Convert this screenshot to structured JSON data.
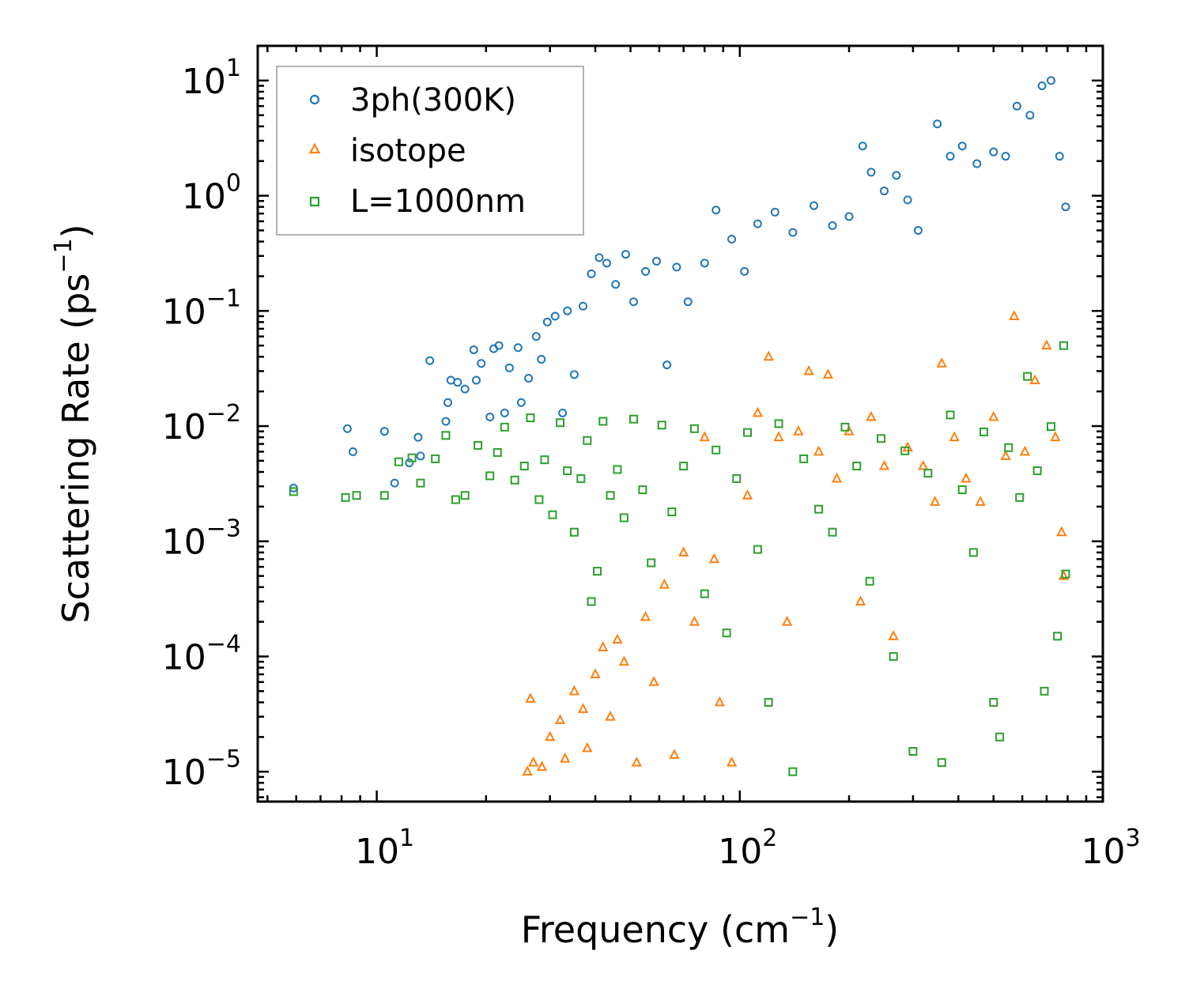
{
  "chart_data": {
    "type": "scatter",
    "title": "",
    "xlabel": "Frequency (cm",
    "xlabel_sup": "−1",
    "xlabel_end": ")",
    "ylabel": "Scattering Rate (ps",
    "ylabel_sup": "−1",
    "ylabel_end": ")",
    "xscale": "log",
    "yscale": "log",
    "xlim": [
      4.7,
      1000
    ],
    "ylim": [
      5.5e-06,
      20
    ],
    "x_ticks": [
      {
        "value": 10,
        "base": "10",
        "exp": "1"
      },
      {
        "value": 100,
        "base": "10",
        "exp": "2"
      },
      {
        "value": 1000,
        "base": "10",
        "exp": "3"
      }
    ],
    "y_ticks": [
      {
        "value": 1e-05,
        "base": "10",
        "exp": "−5"
      },
      {
        "value": 0.0001,
        "base": "10",
        "exp": "−4"
      },
      {
        "value": 0.001,
        "base": "10",
        "exp": "−3"
      },
      {
        "value": 0.01,
        "base": "10",
        "exp": "−2"
      },
      {
        "value": 0.1,
        "base": "10",
        "exp": "−1"
      },
      {
        "value": 1,
        "base": "10",
        "exp": "0"
      },
      {
        "value": 10,
        "base": "10",
        "exp": "1"
      }
    ],
    "legend_position": "top-left",
    "series": [
      {
        "name": "3ph(300K)",
        "marker": "circle",
        "color": "#1f77b4",
        "points": [
          [
            5.9,
            0.0029
          ],
          [
            8.3,
            0.0095
          ],
          [
            8.6,
            0.006
          ],
          [
            10.5,
            0.009
          ],
          [
            11.2,
            0.0032
          ],
          [
            12.3,
            0.0048
          ],
          [
            13.0,
            0.008
          ],
          [
            13.2,
            0.0055
          ],
          [
            14.0,
            0.037
          ],
          [
            15.5,
            0.011
          ],
          [
            15.7,
            0.016
          ],
          [
            16.0,
            0.025
          ],
          [
            16.7,
            0.024
          ],
          [
            17.5,
            0.021
          ],
          [
            18.5,
            0.046
          ],
          [
            18.8,
            0.025
          ],
          [
            19.4,
            0.035
          ],
          [
            20.5,
            0.012
          ],
          [
            21.0,
            0.047
          ],
          [
            21.7,
            0.05
          ],
          [
            22.5,
            0.013
          ],
          [
            23.2,
            0.032
          ],
          [
            24.5,
            0.048
          ],
          [
            25.0,
            0.016
          ],
          [
            26.2,
            0.026
          ],
          [
            27.5,
            0.06
          ],
          [
            28.4,
            0.038
          ],
          [
            29.5,
            0.08
          ],
          [
            31.0,
            0.09
          ],
          [
            32.5,
            0.013
          ],
          [
            33.5,
            0.1
          ],
          [
            35.0,
            0.028
          ],
          [
            37.0,
            0.11
          ],
          [
            39.0,
            0.21
          ],
          [
            41.0,
            0.29
          ],
          [
            43.0,
            0.26
          ],
          [
            45.5,
            0.17
          ],
          [
            48.5,
            0.31
          ],
          [
            51.0,
            0.12
          ],
          [
            55.0,
            0.22
          ],
          [
            59.0,
            0.27
          ],
          [
            63.0,
            0.034
          ],
          [
            67.0,
            0.24
          ],
          [
            72.0,
            0.12
          ],
          [
            80.0,
            0.26
          ],
          [
            86.0,
            0.75
          ],
          [
            95.0,
            0.42
          ],
          [
            103.0,
            0.22
          ],
          [
            112.0,
            0.57
          ],
          [
            125.0,
            0.72
          ],
          [
            140.0,
            0.48
          ],
          [
            160.0,
            0.82
          ],
          [
            180.0,
            0.55
          ],
          [
            200.0,
            0.66
          ],
          [
            218.0,
            2.7
          ],
          [
            230.0,
            1.6
          ],
          [
            250.0,
            1.1
          ],
          [
            270.0,
            1.5
          ],
          [
            290.0,
            0.92
          ],
          [
            310.0,
            0.5
          ],
          [
            350.0,
            4.2
          ],
          [
            380.0,
            2.2
          ],
          [
            410.0,
            2.7
          ],
          [
            450.0,
            1.9
          ],
          [
            500.0,
            2.4
          ],
          [
            540.0,
            2.2
          ],
          [
            580.0,
            6.0
          ],
          [
            630.0,
            5.0
          ],
          [
            680.0,
            9.0
          ],
          [
            720.0,
            10.0
          ],
          [
            760.0,
            2.2
          ],
          [
            790.0,
            0.8
          ]
        ]
      },
      {
        "name": "isotope",
        "marker": "triangle",
        "color": "#ff7f0e",
        "points": [
          [
            26.0,
            1e-05
          ],
          [
            26.5,
            4.3e-05
          ],
          [
            27.0,
            1.2e-05
          ],
          [
            28.5,
            1.1e-05
          ],
          [
            30.0,
            2e-05
          ],
          [
            32.0,
            2.8e-05
          ],
          [
            33.0,
            1.3e-05
          ],
          [
            35.0,
            5e-05
          ],
          [
            37.0,
            3.5e-05
          ],
          [
            38.0,
            1.6e-05
          ],
          [
            40.0,
            7e-05
          ],
          [
            42.0,
            0.00012
          ],
          [
            44.0,
            3e-05
          ],
          [
            46.0,
            0.00014
          ],
          [
            48.0,
            9e-05
          ],
          [
            52.0,
            1.2e-05
          ],
          [
            55.0,
            0.00022
          ],
          [
            58.0,
            6e-05
          ],
          [
            62.0,
            0.00042
          ],
          [
            66.0,
            1.4e-05
          ],
          [
            70.0,
            0.0008
          ],
          [
            75.0,
            0.0002
          ],
          [
            80.0,
            0.008
          ],
          [
            85.0,
            0.0007
          ],
          [
            88.0,
            4e-05
          ],
          [
            95.0,
            1.2e-05
          ],
          [
            105.0,
            0.0025
          ],
          [
            112.0,
            0.013
          ],
          [
            120.0,
            0.04
          ],
          [
            128.0,
            0.008
          ],
          [
            135.0,
            0.0002
          ],
          [
            145.0,
            0.009
          ],
          [
            155.0,
            0.03
          ],
          [
            165.0,
            0.006
          ],
          [
            175.0,
            0.028
          ],
          [
            185.0,
            0.0035
          ],
          [
            200.0,
            0.009
          ],
          [
            215.0,
            0.0003
          ],
          [
            230.0,
            0.012
          ],
          [
            250.0,
            0.0045
          ],
          [
            265.0,
            0.00015
          ],
          [
            290.0,
            0.0065
          ],
          [
            320.0,
            0.0045
          ],
          [
            345.0,
            0.0022
          ],
          [
            360.0,
            0.035
          ],
          [
            390.0,
            0.008
          ],
          [
            420.0,
            0.0035
          ],
          [
            460.0,
            0.0022
          ],
          [
            500.0,
            0.012
          ],
          [
            540.0,
            0.0055
          ],
          [
            570.0,
            0.09
          ],
          [
            610.0,
            0.006
          ],
          [
            650.0,
            0.025
          ],
          [
            700.0,
            0.05
          ],
          [
            740.0,
            0.008
          ],
          [
            770.0,
            0.0012
          ],
          [
            780.0,
            0.0005
          ]
        ]
      },
      {
        "name": "L=1000nm",
        "marker": "square",
        "color": "#2ca02c",
        "points": [
          [
            5.9,
            0.0027
          ],
          [
            8.2,
            0.0024
          ],
          [
            8.8,
            0.0025
          ],
          [
            10.5,
            0.0025
          ],
          [
            11.5,
            0.0049
          ],
          [
            12.5,
            0.0053
          ],
          [
            13.2,
            0.0032
          ],
          [
            14.5,
            0.0052
          ],
          [
            15.5,
            0.0083
          ],
          [
            16.5,
            0.0023
          ],
          [
            17.5,
            0.0025
          ],
          [
            19.0,
            0.0068
          ],
          [
            20.5,
            0.0037
          ],
          [
            21.5,
            0.0059
          ],
          [
            22.5,
            0.0098
          ],
          [
            24.0,
            0.0034
          ],
          [
            25.5,
            0.0045
          ],
          [
            26.5,
            0.0118
          ],
          [
            28.0,
            0.0023
          ],
          [
            29.0,
            0.0051
          ],
          [
            30.5,
            0.0017
          ],
          [
            32.0,
            0.0107
          ],
          [
            33.5,
            0.0041
          ],
          [
            35.0,
            0.0012
          ],
          [
            36.5,
            0.0035
          ],
          [
            38.0,
            0.0075
          ],
          [
            39.0,
            0.0003
          ],
          [
            40.5,
            0.00055
          ],
          [
            42.0,
            0.011
          ],
          [
            44.0,
            0.0025
          ],
          [
            46.0,
            0.0042
          ],
          [
            48.0,
            0.0016
          ],
          [
            51.0,
            0.0115
          ],
          [
            54.0,
            0.0028
          ],
          [
            57.0,
            0.00065
          ],
          [
            61.0,
            0.0102
          ],
          [
            65.0,
            0.0018
          ],
          [
            70.0,
            0.0045
          ],
          [
            75.0,
            0.0095
          ],
          [
            80.0,
            0.00035
          ],
          [
            86.0,
            0.0062
          ],
          [
            92.0,
            0.00016
          ],
          [
            98.0,
            0.0035
          ],
          [
            105.0,
            0.0088
          ],
          [
            112.0,
            0.00085
          ],
          [
            120.0,
            4e-05
          ],
          [
            128.0,
            0.0105
          ],
          [
            140.0,
            1e-05
          ],
          [
            150.0,
            0.0052
          ],
          [
            165.0,
            0.0019
          ],
          [
            180.0,
            0.0012
          ],
          [
            195.0,
            0.0098
          ],
          [
            210.0,
            0.0045
          ],
          [
            228.0,
            0.00045
          ],
          [
            245.0,
            0.0078
          ],
          [
            265.0,
            0.0001
          ],
          [
            285.0,
            0.0061
          ],
          [
            300.0,
            1.5e-05
          ],
          [
            330.0,
            0.0039
          ],
          [
            360.0,
            1.2e-05
          ],
          [
            380.0,
            0.0125
          ],
          [
            410.0,
            0.0028
          ],
          [
            440.0,
            0.0008
          ],
          [
            470.0,
            0.0089
          ],
          [
            500.0,
            4e-05
          ],
          [
            520.0,
            2e-05
          ],
          [
            550.0,
            0.0065
          ],
          [
            590.0,
            0.0024
          ],
          [
            620.0,
            0.027
          ],
          [
            660.0,
            0.0041
          ],
          [
            690.0,
            5e-05
          ],
          [
            720.0,
            0.0099
          ],
          [
            750.0,
            0.00015
          ],
          [
            780.0,
            0.05
          ],
          [
            790.0,
            0.00052
          ]
        ]
      }
    ]
  }
}
